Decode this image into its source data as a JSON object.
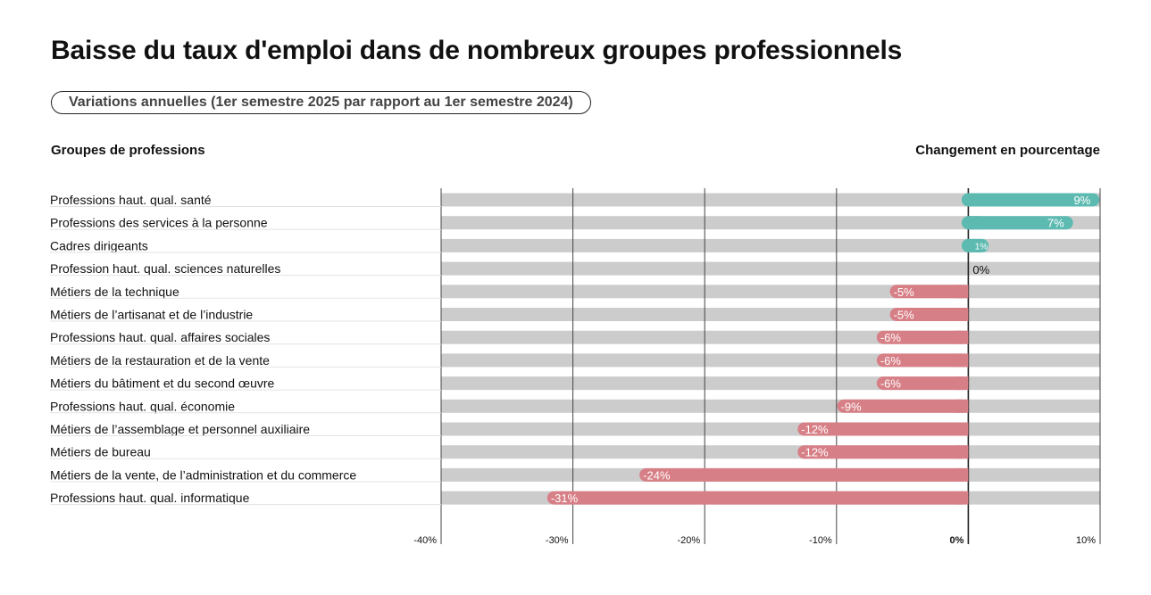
{
  "title": "Baisse du taux d'emploi dans de nombreux groupes professionnels",
  "subtitle": "Variations annuelles (1er semestre 2025 par rapport au 1er semestre 2024)",
  "left_header": "Groupes de professions",
  "right_header": "Changement en pourcentage",
  "colors": {
    "positive": "#5dbab1",
    "negative": "#d77f86",
    "track": "#cccccc",
    "gridline": "#444444",
    "zero_label": "#111111"
  },
  "chart_data": {
    "type": "bar",
    "orientation": "horizontal",
    "xlim": [
      -40,
      10
    ],
    "x_ticks": [
      -40,
      -30,
      -20,
      -10,
      0,
      10
    ],
    "x_tick_labels": [
      "-40%",
      "-30%",
      "-20%",
      "-10%",
      "0%",
      "10%"
    ],
    "grid": true,
    "categories": [
      "Professions haut. qual. santé",
      "Professions des services à la personne",
      "Cadres dirigeants",
      "Profession haut. qual. sciences naturelles",
      "Métiers de la technique",
      "Métiers de l’artisanat et de l’industrie",
      "Professions haut. qual. affaires sociales",
      "Métiers de la restauration et de la vente",
      "Métiers du bâtiment et du second œuvre",
      "Professions haut. qual. économie",
      "Métiers de l’assemblage et personnel auxiliaire",
      "Métiers de bureau",
      "Métiers de la vente, de l’administration et du commerce",
      "Professions haut. qual. informatique"
    ],
    "values": [
      9,
      7,
      1,
      0,
      -5,
      -5,
      -6,
      -6,
      -6,
      -9,
      -12,
      -12,
      -24,
      -31
    ],
    "value_labels": [
      "9%",
      "7%",
      "1%",
      "0%",
      "-5%",
      "-5%",
      "-6%",
      "-6%",
      "-6%",
      "-9%",
      "-12%",
      "-12%",
      "-24%",
      "-31%"
    ]
  }
}
